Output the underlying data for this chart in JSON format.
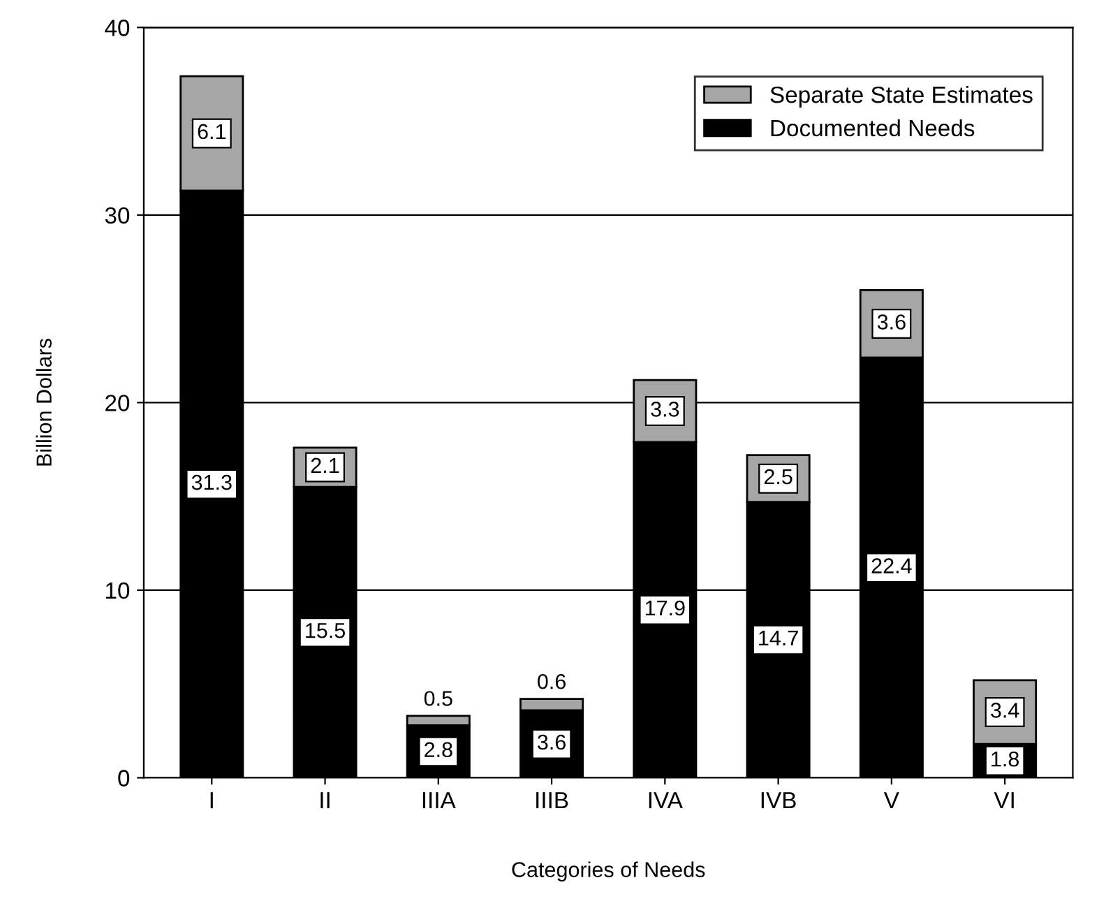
{
  "chart_data": {
    "type": "bar",
    "stacked": true,
    "xlabel": "Categories of Needs",
    "ylabel": "Billion Dollars",
    "categories": [
      "I",
      "II",
      "IIIA",
      "IIIB",
      "IVA",
      "IVB",
      "V",
      "VI"
    ],
    "series": [
      {
        "name": "Documented Needs",
        "color": "#000000",
        "values": [
          31.3,
          15.5,
          2.8,
          3.6,
          17.9,
          14.7,
          22.4,
          1.8
        ]
      },
      {
        "name": "Separate State Estimates",
        "color": "#a6a6a6",
        "values": [
          6.1,
          2.1,
          0.5,
          0.6,
          3.3,
          2.5,
          3.6,
          3.4
        ]
      }
    ],
    "ylim": [
      0,
      40
    ],
    "yticks": [
      0,
      10,
      20,
      30,
      40
    ],
    "grid": "y",
    "legend": "top right",
    "data_labels": true
  }
}
